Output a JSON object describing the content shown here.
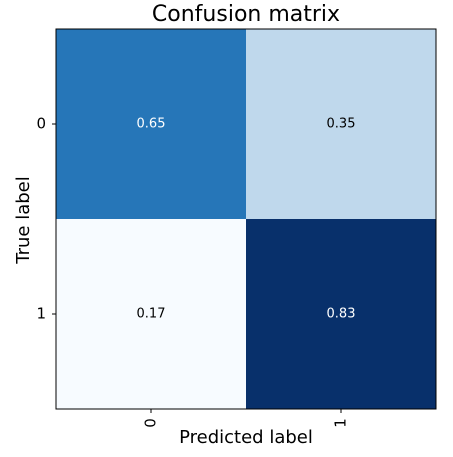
{
  "chart_data": {
    "type": "heatmap",
    "title": "Confusion matrix",
    "x_label": "Predicted label",
    "y_label": "True label",
    "x_categories": [
      "0",
      "1"
    ],
    "y_categories": [
      "0",
      "1"
    ],
    "values": [
      [
        0.65,
        0.35
      ],
      [
        0.17,
        0.83
      ]
    ],
    "colors": [
      [
        "#2676b8",
        "#bfd8ec"
      ],
      [
        "#f7fbff",
        "#08306b"
      ]
    ]
  }
}
